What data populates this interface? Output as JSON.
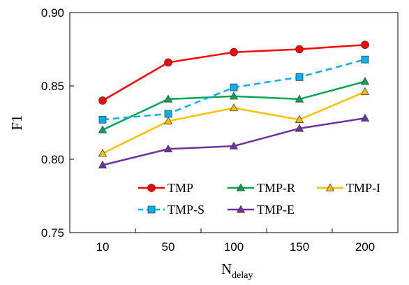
{
  "chart_data": {
    "type": "line",
    "title": "",
    "xlabel": "N",
    "xlabel_sub": "delay",
    "ylabel": "F1",
    "categories": [
      "10",
      "50",
      "100",
      "150",
      "200"
    ],
    "ylim": [
      0.75,
      0.9
    ],
    "yticks": [
      "0.75",
      "0.80",
      "0.85",
      "0.90"
    ],
    "grid": false,
    "legend_position": "lower-right",
    "series": [
      {
        "name": "TMP",
        "color": "#ff0000",
        "marker": "circle",
        "dashed": false,
        "values": [
          0.84,
          0.866,
          0.873,
          0.875,
          0.878
        ]
      },
      {
        "name": "TMP-R",
        "color": "#00a651",
        "marker": "triangle",
        "dashed": false,
        "values": [
          0.82,
          0.841,
          0.843,
          0.841,
          0.853
        ]
      },
      {
        "name": "TMP-I",
        "color": "#ffc000",
        "marker": "triangle",
        "dashed": false,
        "values": [
          0.804,
          0.826,
          0.835,
          0.827,
          0.846
        ]
      },
      {
        "name": "TMP-S",
        "color": "#00b0f0",
        "marker": "square",
        "dashed": true,
        "values": [
          0.827,
          0.831,
          0.849,
          0.856,
          0.868
        ]
      },
      {
        "name": "TMP-E",
        "color": "#7030a0",
        "marker": "triangle",
        "dashed": false,
        "values": [
          0.796,
          0.807,
          0.809,
          0.821,
          0.828
        ]
      }
    ]
  }
}
